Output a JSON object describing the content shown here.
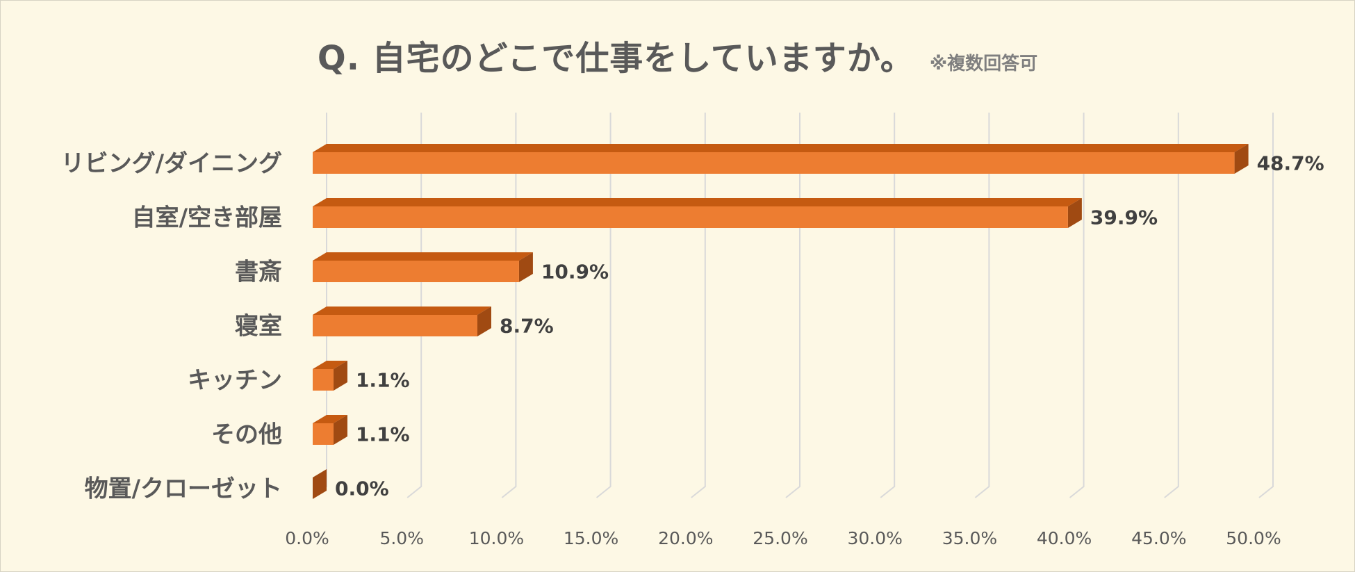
{
  "title": "Q. 自宅のどこで仕事をしていますか。",
  "title_note": "※複数回答可",
  "chart_data": {
    "type": "bar",
    "orientation": "horizontal",
    "style": "3d",
    "categories": [
      "リビング/ダイニング",
      "自室/空き部屋",
      "書斎",
      "寝室",
      "キッチン",
      "その他",
      "物置/クローゼット"
    ],
    "values": [
      48.7,
      39.9,
      10.9,
      8.7,
      1.1,
      1.1,
      0.0
    ],
    "value_labels": [
      "48.7%",
      "39.9%",
      "10.9%",
      "8.7%",
      "1.1%",
      "1.1%",
      "0.0%"
    ],
    "x_ticks": [
      "0.0%",
      "5.0%",
      "10.0%",
      "15.0%",
      "20.0%",
      "25.0%",
      "30.0%",
      "35.0%",
      "40.0%",
      "45.0%",
      "50.0%"
    ],
    "xlim": [
      0,
      50
    ],
    "grid": true,
    "legend": "none",
    "colors": {
      "bar_front": "#ed7d31",
      "bar_top": "#c55a11",
      "bar_side": "#a04a12",
      "grid": "#d9d9d9",
      "background": "#fdf8e5"
    }
  }
}
